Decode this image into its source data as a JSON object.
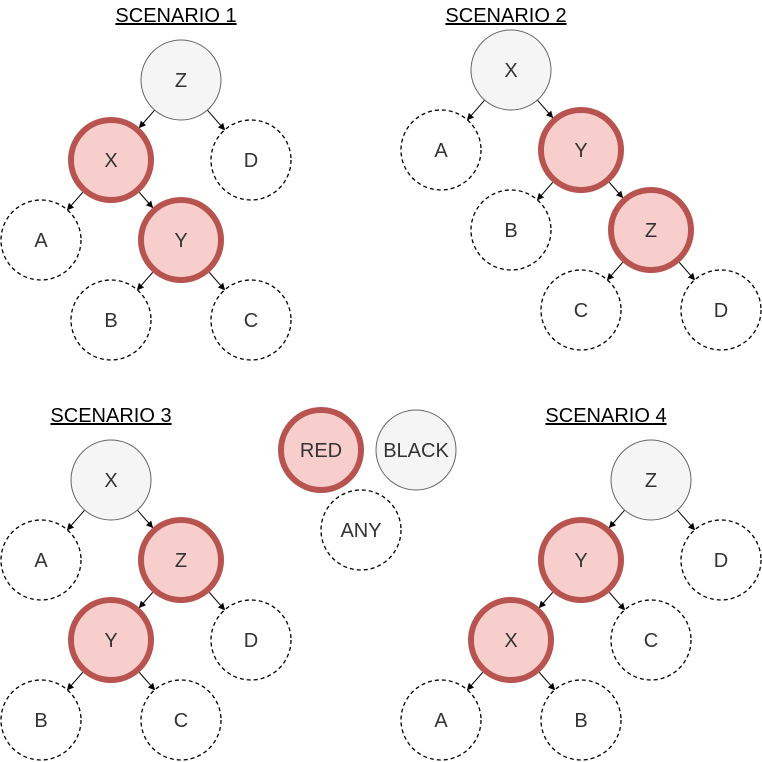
{
  "legend": {
    "red": "RED",
    "black": "BLACK",
    "any": "ANY"
  },
  "colors": {
    "red_fill": "#f8cecc",
    "red_stroke": "#b85450",
    "black_fill": "#f5f5f5",
    "black_stroke": "#666666"
  },
  "scenarios": [
    {
      "title": "SCENARIO 1",
      "nodes": [
        {
          "id": "Z",
          "label": "Z",
          "kind": "black"
        },
        {
          "id": "X",
          "label": "X",
          "kind": "red"
        },
        {
          "id": "D",
          "label": "D",
          "kind": "any"
        },
        {
          "id": "A",
          "label": "A",
          "kind": "any"
        },
        {
          "id": "Y",
          "label": "Y",
          "kind": "red"
        },
        {
          "id": "B",
          "label": "B",
          "kind": "any"
        },
        {
          "id": "C",
          "label": "C",
          "kind": "any"
        }
      ],
      "edges": [
        [
          "Z",
          "X"
        ],
        [
          "Z",
          "D"
        ],
        [
          "X",
          "A"
        ],
        [
          "X",
          "Y"
        ],
        [
          "Y",
          "B"
        ],
        [
          "Y",
          "C"
        ]
      ]
    },
    {
      "title": "SCENARIO 2",
      "nodes": [
        {
          "id": "X",
          "label": "X",
          "kind": "black"
        },
        {
          "id": "A",
          "label": "A",
          "kind": "any"
        },
        {
          "id": "Y",
          "label": "Y",
          "kind": "red"
        },
        {
          "id": "B",
          "label": "B",
          "kind": "any"
        },
        {
          "id": "Z",
          "label": "Z",
          "kind": "red"
        },
        {
          "id": "C",
          "label": "C",
          "kind": "any"
        },
        {
          "id": "D",
          "label": "D",
          "kind": "any"
        }
      ],
      "edges": [
        [
          "X",
          "A"
        ],
        [
          "X",
          "Y"
        ],
        [
          "Y",
          "B"
        ],
        [
          "Y",
          "Z"
        ],
        [
          "Z",
          "C"
        ],
        [
          "Z",
          "D"
        ]
      ]
    },
    {
      "title": "SCENARIO 3",
      "nodes": [
        {
          "id": "X",
          "label": "X",
          "kind": "black"
        },
        {
          "id": "A",
          "label": "A",
          "kind": "any"
        },
        {
          "id": "Z",
          "label": "Z",
          "kind": "red"
        },
        {
          "id": "Y",
          "label": "Y",
          "kind": "red"
        },
        {
          "id": "D",
          "label": "D",
          "kind": "any"
        },
        {
          "id": "B",
          "label": "B",
          "kind": "any"
        },
        {
          "id": "C",
          "label": "C",
          "kind": "any"
        }
      ],
      "edges": [
        [
          "X",
          "A"
        ],
        [
          "X",
          "Z"
        ],
        [
          "Z",
          "Y"
        ],
        [
          "Z",
          "D"
        ],
        [
          "Y",
          "B"
        ],
        [
          "Y",
          "C"
        ]
      ]
    },
    {
      "title": "SCENARIO 4",
      "nodes": [
        {
          "id": "Z",
          "label": "Z",
          "kind": "black"
        },
        {
          "id": "Y",
          "label": "Y",
          "kind": "red"
        },
        {
          "id": "D",
          "label": "D",
          "kind": "any"
        },
        {
          "id": "X",
          "label": "X",
          "kind": "red"
        },
        {
          "id": "C",
          "label": "C",
          "kind": "any"
        },
        {
          "id": "A",
          "label": "A",
          "kind": "any"
        },
        {
          "id": "B",
          "label": "B",
          "kind": "any"
        }
      ],
      "edges": [
        [
          "Z",
          "Y"
        ],
        [
          "Z",
          "D"
        ],
        [
          "Y",
          "X"
        ],
        [
          "Y",
          "C"
        ],
        [
          "X",
          "A"
        ],
        [
          "X",
          "B"
        ]
      ]
    }
  ]
}
